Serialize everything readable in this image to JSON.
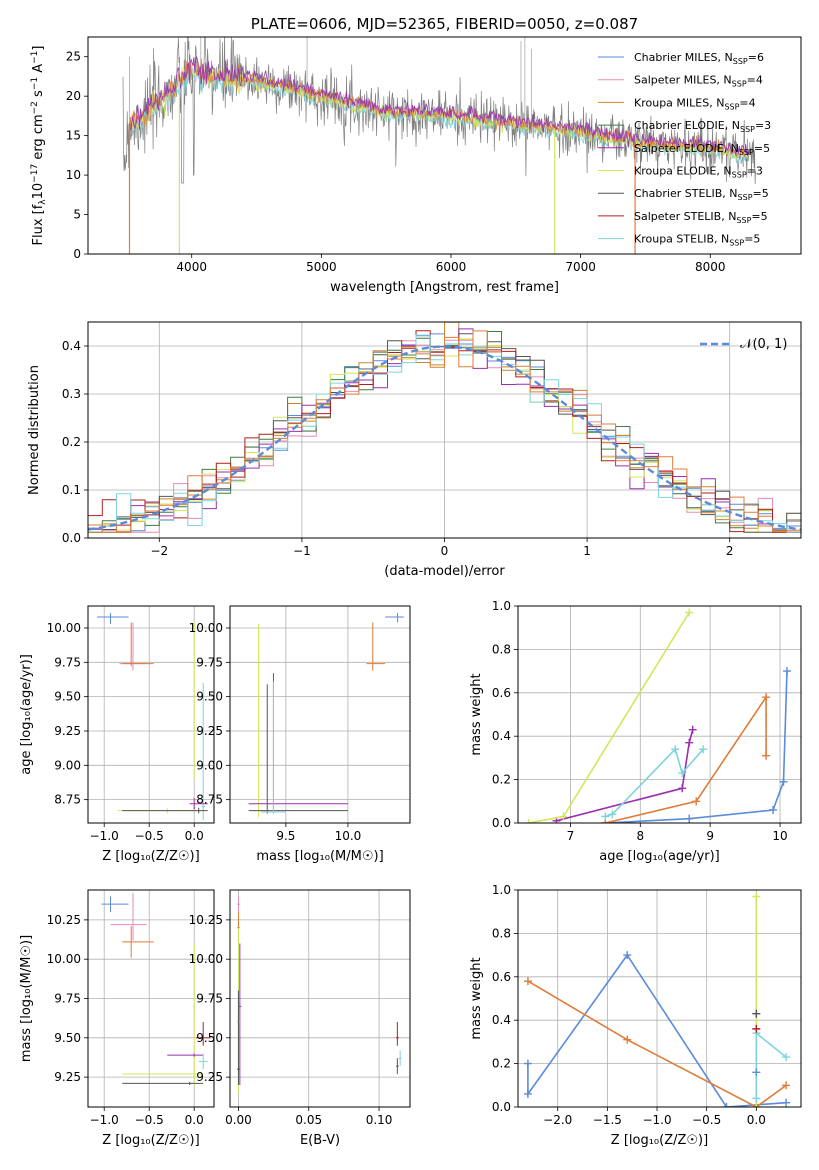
{
  "colors": {
    "Chabrier MILES": "#5b8bd9",
    "Salpeter MILES": "#e88ab4",
    "Kroupa MILES": "#c8872a",
    "Chabrier ELODIE": "#3f7f3f",
    "Salpeter ELODIE": "#9a2fb0",
    "Kroupa ELODIE": "#d4e65a",
    "Chabrier STELIB": "#555555",
    "Salpeter STELIB": "#b01e1e",
    "Kroupa STELIB": "#7fd3dc",
    "orange": "#e07b39",
    "gray_spec": "#808080",
    "normal_curve": "#5b8bd9"
  },
  "chart_data": [
    {
      "id": "spectrum",
      "type": "line",
      "title": "PLATE=0606, MJD=52365, FIBERID=0050, z=0.087",
      "xlabel": "wavelength [Angstrom, rest frame]",
      "ylabel_main": "Flux [f",
      "ylabel_sub": "λ",
      "ylabel_rest": "10",
      "xlim": [
        3200,
        8700
      ],
      "ylim": [
        0,
        27.5
      ],
      "xticks": [
        4000,
        5000,
        6000,
        7000,
        8000
      ],
      "yticks": [
        0,
        5,
        10,
        15,
        20,
        25
      ],
      "grid": false,
      "legend_placement": "top-right",
      "series": [
        {
          "name": "Chabrier MILES",
          "n_ssp": 6
        },
        {
          "name": "Salpeter MILES",
          "n_ssp": 4
        },
        {
          "name": "Kroupa MILES",
          "n_ssp": 4
        },
        {
          "name": "Chabrier ELODIE",
          "n_ssp": 3
        },
        {
          "name": "Salpeter ELODIE",
          "n_ssp": 5
        },
        {
          "name": "Kroupa ELODIE",
          "n_ssp": 3
        },
        {
          "name": "Chabrier STELIB",
          "n_ssp": 5
        },
        {
          "name": "Salpeter STELIB",
          "n_ssp": 5
        },
        {
          "name": "Kroupa STELIB",
          "n_ssp": 5
        }
      ],
      "continuum": [
        [
          3500,
          16
        ],
        [
          3600,
          17
        ],
        [
          3800,
          20
        ],
        [
          4000,
          23.5
        ],
        [
          4100,
          22.5
        ],
        [
          4500,
          22
        ],
        [
          5000,
          20
        ],
        [
          5500,
          18
        ],
        [
          6000,
          17.5
        ],
        [
          6500,
          16.5
        ],
        [
          7000,
          15.5
        ],
        [
          7500,
          14
        ],
        [
          8000,
          13.5
        ],
        [
          8300,
          12.5
        ]
      ]
    },
    {
      "id": "residuals",
      "type": "line",
      "xlabel": "(data-model)/error",
      "ylabel": "Normed distribution",
      "xlim": [
        -2.5,
        2.5
      ],
      "ylim": [
        0,
        0.45
      ],
      "xticks": [
        -2,
        -1,
        0,
        1,
        2
      ],
      "yticks": [
        0.0,
        0.1,
        0.2,
        0.3,
        0.4
      ],
      "grid": true,
      "legend_placement": "top-right",
      "legend": "𝒩(0, 1)",
      "series_hist": [
        {
          "name": "Chabrier MILES",
          "values": [
            0.03,
            0.04,
            0.05,
            0.06,
            0.07,
            0.09,
            0.1,
            0.12,
            0.14,
            0.17,
            0.19,
            0.21,
            0.24,
            0.26,
            0.28,
            0.3,
            0.32,
            0.35,
            0.37,
            0.38,
            0.4,
            0.4,
            0.39,
            0.38,
            0.36,
            0.34,
            0.31,
            0.29,
            0.27,
            0.24,
            0.22,
            0.19,
            0.17,
            0.15,
            0.13,
            0.11,
            0.09,
            0.07,
            0.06,
            0.05,
            0.04
          ]
        }
      ]
    },
    {
      "id": "age_vs_Z",
      "type": "scatter",
      "xlabel": "Z [log₁₀(Z/Z☉)]",
      "ylabel": "age  [log₁₀(age/yr)]",
      "xlim": [
        -1.18,
        0.22
      ],
      "ylim": [
        8.58,
        10.16
      ],
      "xticks": [
        -1.0,
        -0.5,
        0.0
      ],
      "yticks": [
        8.75,
        9.0,
        9.25,
        9.5,
        9.75,
        10.0
      ],
      "grid": true
    },
    {
      "id": "age_vs_mass",
      "type": "scatter",
      "xlabel": "mass [log₁₀(M/M☉)]",
      "xlim": [
        9.05,
        10.5
      ],
      "ylim": [
        8.58,
        10.16
      ],
      "xticks": [
        9.5,
        10.0
      ],
      "yticks": [
        8.75,
        9.0,
        9.25,
        9.5,
        9.75,
        10.0
      ],
      "grid": true
    },
    {
      "id": "weight_vs_age",
      "type": "line",
      "xlabel": "age  [log₁₀(age/yr)]",
      "ylabel": "mass weight",
      "xlim": [
        6.25,
        10.3
      ],
      "ylim": [
        0,
        1.0
      ],
      "xticks": [
        7,
        8,
        9,
        10
      ],
      "yticks": [
        0.0,
        0.2,
        0.4,
        0.6,
        0.8,
        1.0
      ],
      "grid": true,
      "series": [
        {
          "name": "Chabrier MILES",
          "x": [
            7.5,
            8.7,
            9.9,
            10.05,
            10.1
          ],
          "y": [
            0.0,
            0.02,
            0.06,
            0.19,
            0.7
          ]
        },
        {
          "name": "Kroupa MILES",
          "x": [
            7.5,
            8.8,
            9.8,
            9.8
          ],
          "y": [
            0.0,
            0.1,
            0.58,
            0.31
          ]
        },
        {
          "name": "Salpeter ELODIE",
          "x": [
            6.8,
            8.6,
            8.7,
            8.75
          ],
          "y": [
            0.01,
            0.16,
            0.37,
            0.43
          ]
        },
        {
          "name": "Kroupa ELODIE",
          "x": [
            6.4,
            6.9,
            8.7
          ],
          "y": [
            0.0,
            0.03,
            0.97
          ]
        },
        {
          "name": "Kroupa STELIB",
          "x": [
            7.5,
            7.6,
            8.5,
            8.6,
            8.9
          ],
          "y": [
            0.03,
            0.04,
            0.34,
            0.23,
            0.34
          ]
        }
      ]
    },
    {
      "id": "mass_vs_Z",
      "type": "scatter",
      "xlabel": "Z [log₁₀(Z/Z☉)]",
      "ylabel": "mass [log₁₀(M/M☉)]",
      "xlim": [
        -1.18,
        0.22
      ],
      "ylim": [
        9.06,
        10.44
      ],
      "xticks": [
        -1.0,
        -0.5,
        0.0
      ],
      "yticks": [
        9.25,
        9.5,
        9.75,
        10.0,
        10.25
      ],
      "grid": true
    },
    {
      "id": "mass_vs_EBV",
      "type": "scatter",
      "xlabel": "E(B-V)",
      "xlim": [
        -0.006,
        0.122
      ],
      "ylim": [
        9.06,
        10.44
      ],
      "xticks": [
        0.0,
        0.05,
        0.1
      ],
      "yticks": [
        9.25,
        9.5,
        9.75,
        10.0,
        10.25
      ],
      "grid": true
    },
    {
      "id": "weight_vs_Z",
      "type": "line",
      "xlabel": "Z [log₁₀(Z/Z☉)]",
      "ylabel": "mass weight",
      "xlim": [
        -2.4,
        0.45
      ],
      "ylim": [
        0,
        1.0
      ],
      "xticks": [
        -2.0,
        -1.5,
        -1.0,
        -0.5,
        0.0
      ],
      "yticks": [
        0.0,
        0.2,
        0.4,
        0.6,
        0.8,
        1.0
      ],
      "grid": true,
      "series": [
        {
          "name": "Chabrier MILES",
          "x": [
            -2.3,
            -2.3,
            -1.3,
            -0.3,
            0.3
          ],
          "y": [
            0.2,
            0.06,
            0.7,
            0.0,
            0.02
          ]
        },
        {
          "name": "Kroupa MILES",
          "x": [
            -2.3,
            -1.3,
            0.0,
            0.3
          ],
          "y": [
            0.58,
            0.31,
            0.0,
            0.1
          ]
        },
        {
          "name": "Kroupa ELODIE",
          "x": [
            0.0,
            0.0
          ],
          "y": [
            0.0,
            0.97
          ]
        },
        {
          "name": "Kroupa STELIB",
          "x": [
            0.0,
            0.0,
            0.3
          ],
          "y": [
            0.04,
            0.34,
            0.23
          ]
        }
      ]
    }
  ]
}
